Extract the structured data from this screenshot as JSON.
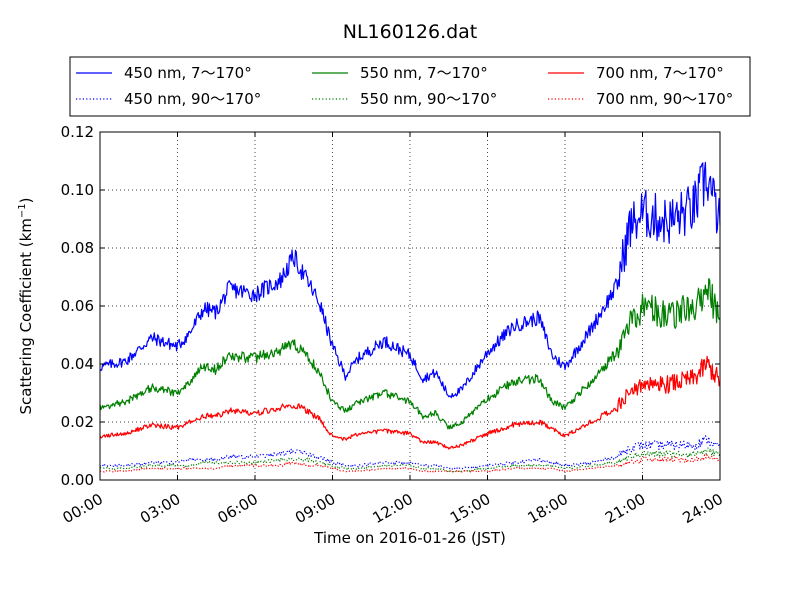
{
  "chart_data": {
    "type": "line",
    "title": "NL160126.dat",
    "xlabel": "Time on 2016-01-26 (JST)",
    "ylabel": "Scattering Coefficient (km",
    "ylabel_sup": "−1",
    "ylabel_close": ")",
    "xlim": [
      "00:00",
      "24:00"
    ],
    "ylim": [
      0,
      0.12
    ],
    "grid": true,
    "legend_position": "top, above plot",
    "x_ticks": [
      "00:00",
      "03:00",
      "06:00",
      "09:00",
      "12:00",
      "15:00",
      "18:00",
      "21:00",
      "24:00"
    ],
    "y_ticks": [
      "0.00",
      "0.02",
      "0.04",
      "0.06",
      "0.08",
      "0.10",
      "0.12"
    ],
    "x_hours": [
      0,
      1,
      2,
      3,
      3.5,
      4,
      4.5,
      5,
      6,
      7,
      7.5,
      8,
      8.5,
      9,
      9.5,
      10,
      11,
      12,
      12.5,
      13,
      13.5,
      14,
      15,
      16,
      17,
      17.5,
      18,
      19,
      20,
      20.5,
      21,
      22,
      23,
      23.5,
      24
    ],
    "series": [
      {
        "name": "450 nm, 7～170°",
        "color": "#0000ff",
        "style": "solid",
        "values": [
          0.039,
          0.041,
          0.049,
          0.046,
          0.051,
          0.059,
          0.058,
          0.066,
          0.064,
          0.069,
          0.077,
          0.069,
          0.061,
          0.046,
          0.036,
          0.042,
          0.048,
          0.043,
          0.035,
          0.037,
          0.029,
          0.031,
          0.044,
          0.053,
          0.056,
          0.043,
          0.039,
          0.052,
          0.067,
          0.087,
          0.092,
          0.089,
          0.094,
          0.105,
          0.088
        ]
      },
      {
        "name": "450 nm, 90～170°",
        "color": "#0000ff",
        "style": "dotted",
        "values": [
          0.005,
          0.005,
          0.006,
          0.006,
          0.007,
          0.007,
          0.007,
          0.008,
          0.008,
          0.009,
          0.01,
          0.009,
          0.008,
          0.006,
          0.005,
          0.005,
          0.006,
          0.006,
          0.005,
          0.005,
          0.004,
          0.004,
          0.005,
          0.006,
          0.007,
          0.006,
          0.005,
          0.006,
          0.008,
          0.011,
          0.012,
          0.012,
          0.012,
          0.014,
          0.011
        ]
      },
      {
        "name": "550 nm, 7～170°",
        "color": "#008000",
        "style": "solid",
        "values": [
          0.025,
          0.027,
          0.032,
          0.03,
          0.034,
          0.039,
          0.038,
          0.043,
          0.042,
          0.045,
          0.047,
          0.043,
          0.037,
          0.027,
          0.024,
          0.027,
          0.03,
          0.027,
          0.022,
          0.023,
          0.018,
          0.02,
          0.028,
          0.034,
          0.035,
          0.027,
          0.025,
          0.034,
          0.044,
          0.054,
          0.059,
          0.057,
          0.06,
          0.066,
          0.056
        ]
      },
      {
        "name": "550 nm, 90～170°",
        "color": "#008000",
        "style": "dotted",
        "values": [
          0.004,
          0.004,
          0.005,
          0.005,
          0.005,
          0.006,
          0.006,
          0.006,
          0.006,
          0.007,
          0.007,
          0.007,
          0.006,
          0.005,
          0.004,
          0.004,
          0.005,
          0.005,
          0.004,
          0.004,
          0.003,
          0.003,
          0.004,
          0.005,
          0.005,
          0.005,
          0.004,
          0.005,
          0.006,
          0.008,
          0.009,
          0.009,
          0.009,
          0.01,
          0.009
        ]
      },
      {
        "name": "700 nm, 7～170°",
        "color": "#ff0000",
        "style": "solid",
        "values": [
          0.015,
          0.016,
          0.019,
          0.018,
          0.02,
          0.022,
          0.022,
          0.024,
          0.023,
          0.025,
          0.026,
          0.024,
          0.021,
          0.015,
          0.014,
          0.016,
          0.017,
          0.016,
          0.013,
          0.013,
          0.011,
          0.012,
          0.016,
          0.019,
          0.02,
          0.018,
          0.015,
          0.02,
          0.025,
          0.03,
          0.033,
          0.033,
          0.035,
          0.04,
          0.034
        ]
      },
      {
        "name": "700 nm, 90～170°",
        "color": "#ff0000",
        "style": "dotted",
        "values": [
          0.003,
          0.003,
          0.004,
          0.004,
          0.004,
          0.004,
          0.004,
          0.005,
          0.005,
          0.005,
          0.006,
          0.005,
          0.005,
          0.004,
          0.003,
          0.003,
          0.004,
          0.004,
          0.003,
          0.003,
          0.003,
          0.003,
          0.003,
          0.004,
          0.004,
          0.004,
          0.003,
          0.004,
          0.005,
          0.006,
          0.007,
          0.007,
          0.007,
          0.008,
          0.007
        ]
      }
    ]
  }
}
